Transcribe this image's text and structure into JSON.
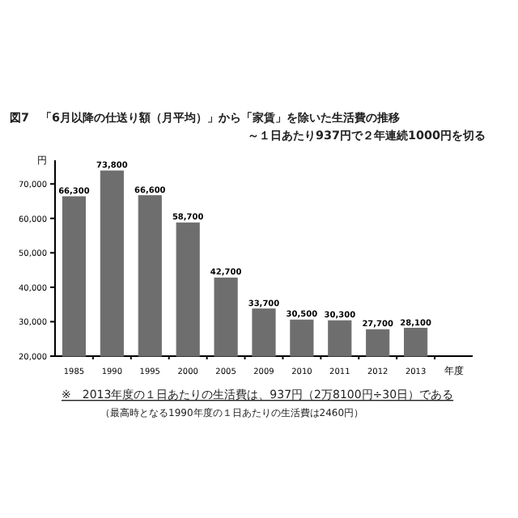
{
  "chart_data": {
    "type": "bar",
    "title": "図7　「6月以降の仕送り額（月平均）」から「家賃」を除いた生活費の推移",
    "subtitle": "～１日あたり937円で２年連続1000円を切る",
    "ylabel": "円",
    "xlabel": "年度",
    "categories": [
      "1985",
      "1990",
      "1995",
      "2000",
      "2005",
      "2009",
      "2010",
      "2011",
      "2012",
      "2013"
    ],
    "values": [
      66300,
      73800,
      66600,
      58700,
      42700,
      33700,
      30500,
      30300,
      27700,
      28100
    ],
    "color": "#6e6e6e",
    "ylim": [
      20000,
      75000
    ],
    "yticks": [
      {
        "value": 20000,
        "label": "20,000"
      },
      {
        "value": 30000,
        "label": "30,000"
      },
      {
        "value": 40000,
        "label": "40,000"
      },
      {
        "value": 50000,
        "label": "50,000"
      },
      {
        "value": 60000,
        "label": "60,000"
      },
      {
        "value": 70000,
        "label": "70,000"
      }
    ],
    "value_labels": [
      "66,300",
      "73,800",
      "66,600",
      "58,700",
      "42,700",
      "33,700",
      "30,500",
      "30,300",
      "27,700",
      "28,100"
    ],
    "grid": false,
    "annotations": [
      "※　2013年度の１日あたりの生活費は、937円（2万8100円÷30日）である",
      "（最高時となる1990年度の１日あたりの生活費は2460円）"
    ]
  }
}
